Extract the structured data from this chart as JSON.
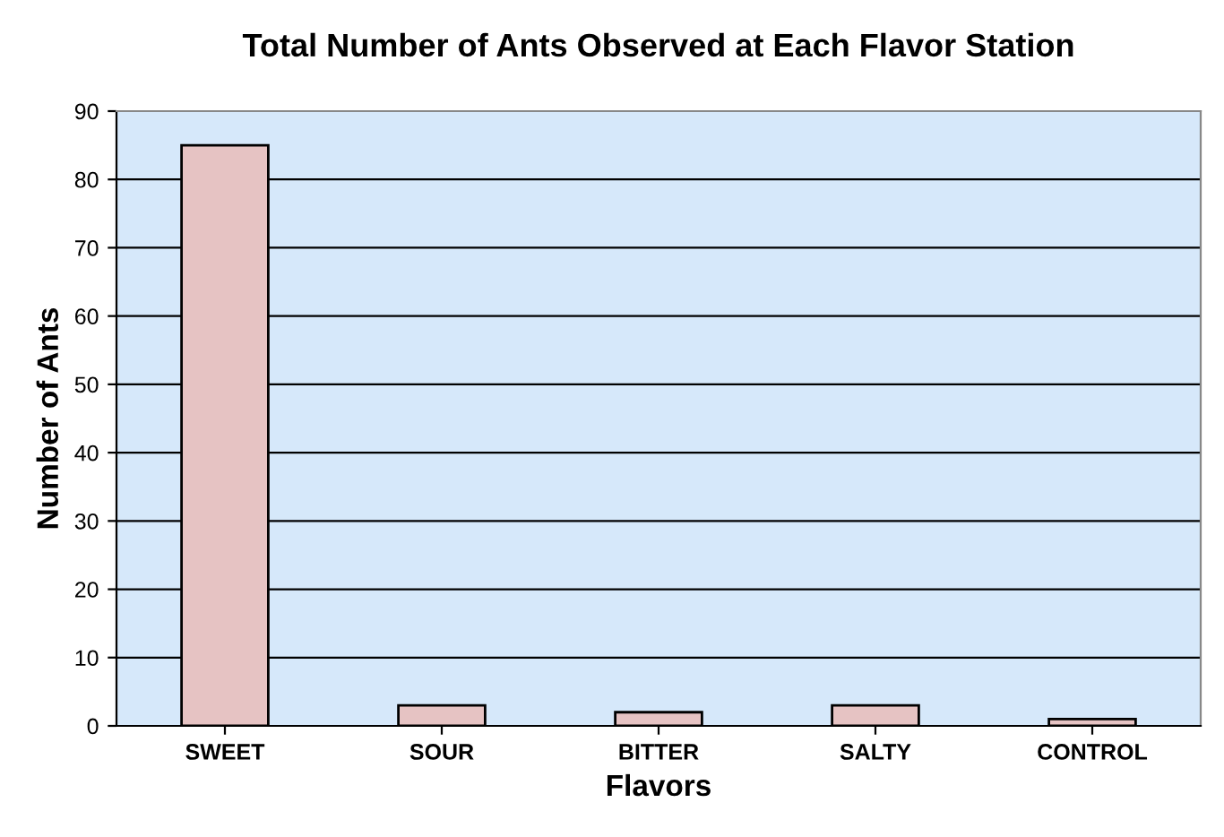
{
  "chart_data": {
    "type": "bar",
    "title": "Total Number of Ants Observed at Each Flavor Station",
    "xlabel": "Flavors",
    "ylabel": "Number of Ants",
    "categories": [
      "SWEET",
      "SOUR",
      "BITTER",
      "SALTY",
      "CONTROL"
    ],
    "values": [
      85,
      3,
      2,
      3,
      1
    ],
    "color": "#e6c3c3",
    "ylim": [
      0,
      90
    ],
    "yticks": [
      0,
      10,
      20,
      30,
      40,
      50,
      60,
      70,
      80,
      90
    ],
    "grid": "y"
  }
}
